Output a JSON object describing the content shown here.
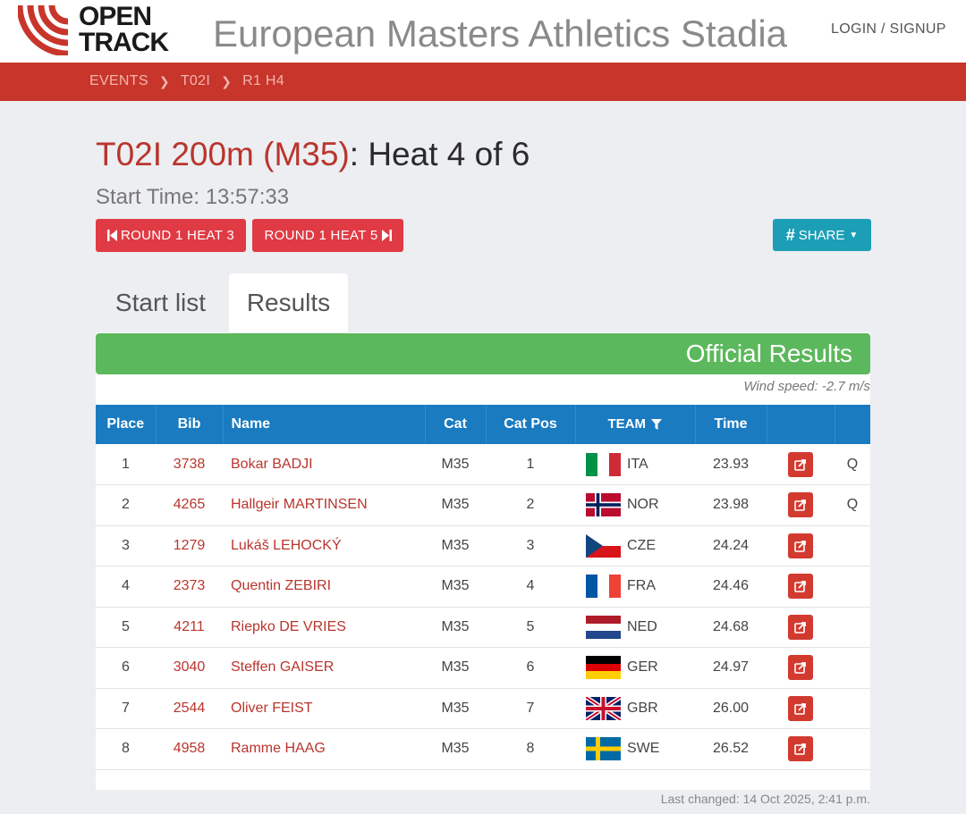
{
  "header": {
    "logo_line1": "OPEN",
    "logo_line2": "TRACK",
    "site_title": "European Masters Athletics Stadia",
    "login_label": "LOGIN / SIGNUP"
  },
  "breadcrumbs": [
    "EVENTS",
    "T02I",
    "R1 H4"
  ],
  "event": {
    "title_red": "T02I 200m (M35)",
    "title_rest": ": Heat 4 of 6",
    "start_time": "Start Time: 13:57:33"
  },
  "buttons": {
    "prev_heat": "ROUND 1 HEAT 3",
    "next_heat": "ROUND 1 HEAT 5",
    "share": "SHARE"
  },
  "tabs": [
    "Start list",
    "Results"
  ],
  "results": {
    "banner": "Official Results",
    "wind": "Wind speed: -2.7 m/s",
    "columns": [
      "Place",
      "Bib",
      "Name",
      "Cat",
      "Cat Pos",
      "TEAM",
      "Time",
      "",
      ""
    ],
    "rows": [
      {
        "place": "1",
        "bib": "3738",
        "name": "Bokar BADJI",
        "cat": "M35",
        "cat_pos": "1",
        "team": "ITA",
        "time": "23.93",
        "q": "Q"
      },
      {
        "place": "2",
        "bib": "4265",
        "name": "Hallgeir MARTINSEN",
        "cat": "M35",
        "cat_pos": "2",
        "team": "NOR",
        "time": "23.98",
        "q": "Q"
      },
      {
        "place": "3",
        "bib": "1279",
        "name": "Lukáš LEHOCKÝ",
        "cat": "M35",
        "cat_pos": "3",
        "team": "CZE",
        "time": "24.24",
        "q": ""
      },
      {
        "place": "4",
        "bib": "2373",
        "name": "Quentin ZEBIRI",
        "cat": "M35",
        "cat_pos": "4",
        "team": "FRA",
        "time": "24.46",
        "q": ""
      },
      {
        "place": "5",
        "bib": "4211",
        "name": "Riepko DE VRIES",
        "cat": "M35",
        "cat_pos": "5",
        "team": "NED",
        "time": "24.68",
        "q": ""
      },
      {
        "place": "6",
        "bib": "3040",
        "name": "Steffen GAISER",
        "cat": "M35",
        "cat_pos": "6",
        "team": "GER",
        "time": "24.97",
        "q": ""
      },
      {
        "place": "7",
        "bib": "2544",
        "name": "Oliver FEIST",
        "cat": "M35",
        "cat_pos": "7",
        "team": "GBR",
        "time": "26.00",
        "q": ""
      },
      {
        "place": "8",
        "bib": "4958",
        "name": "Ramme HAAG",
        "cat": "M35",
        "cat_pos": "8",
        "team": "SWE",
        "time": "26.52",
        "q": ""
      }
    ]
  },
  "footer": {
    "last_changed": "Last changed: 14 Oct 2025, 2:41 p.m."
  },
  "colors": {
    "brand_red": "#c8352b",
    "link_red": "#b9352d",
    "button_red": "#e03a44",
    "share_teal": "#1c9fb6",
    "official_green": "#5cb85c",
    "table_header_blue": "#1a7bc0"
  }
}
